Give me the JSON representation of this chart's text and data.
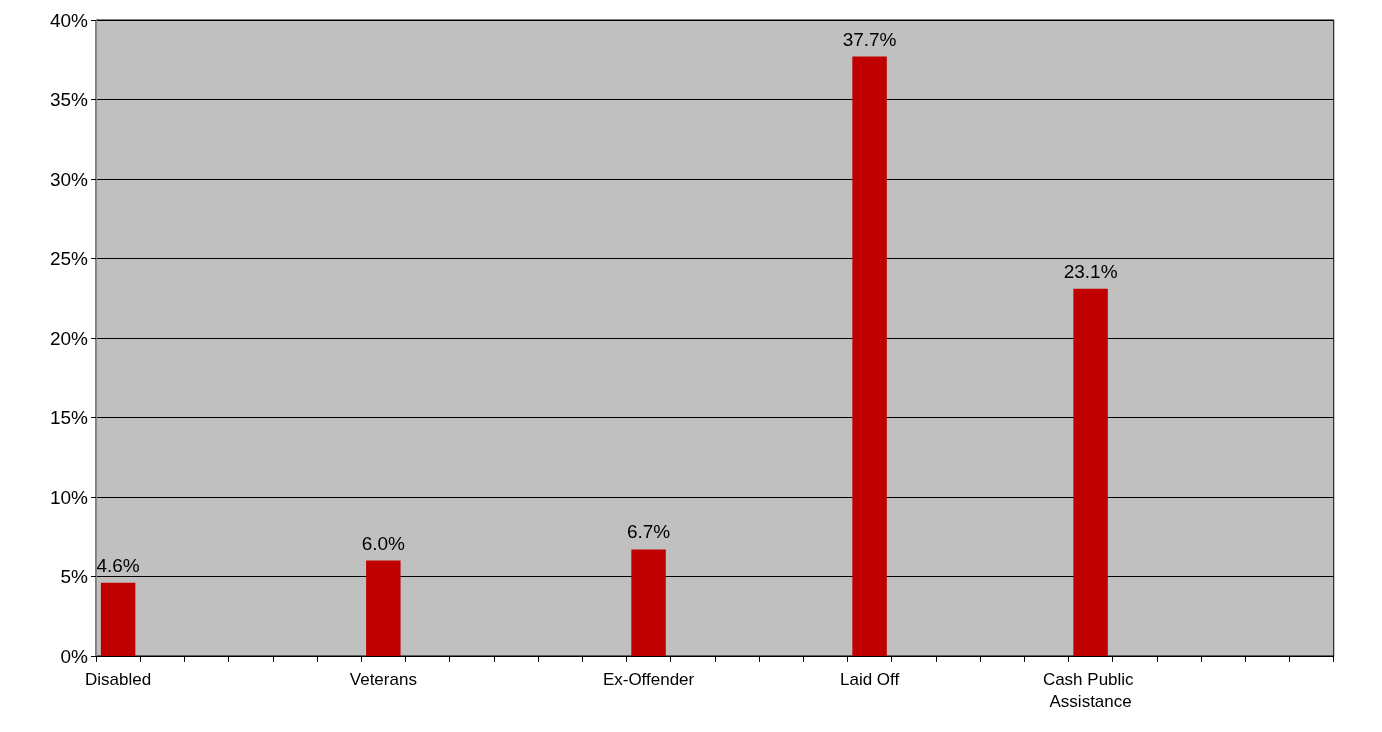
{
  "chart_data": {
    "type": "bar",
    "categories": [
      "Disabled",
      null,
      null,
      null,
      null,
      null,
      "Veterans",
      null,
      null,
      null,
      null,
      null,
      "Ex-Offender",
      null,
      null,
      null,
      null,
      "Laid Off",
      null,
      null,
      null,
      null,
      "Cash Public Assistance",
      null,
      null,
      null,
      null,
      null
    ],
    "values": [
      4.6,
      null,
      null,
      null,
      null,
      null,
      6.0,
      null,
      null,
      null,
      null,
      null,
      6.7,
      null,
      null,
      null,
      null,
      37.7,
      null,
      null,
      null,
      null,
      23.1,
      null,
      null,
      null,
      null,
      null
    ],
    "value_labels": [
      "4.6%",
      null,
      null,
      null,
      null,
      null,
      "6.0%",
      null,
      null,
      null,
      null,
      null,
      "6.7%",
      null,
      null,
      null,
      null,
      "37.7%",
      null,
      null,
      null,
      null,
      "23.1%",
      null,
      null,
      null,
      null,
      null
    ],
    "color": "#c00000",
    "ylim": [
      0,
      40
    ],
    "yticks": [
      {
        "value": 0,
        "label": "0%"
      },
      {
        "value": 5,
        "label": "5%"
      },
      {
        "value": 10,
        "label": "10%"
      },
      {
        "value": 15,
        "label": "15%"
      },
      {
        "value": 20,
        "label": "20%"
      },
      {
        "value": 25,
        "label": "25%"
      },
      {
        "value": 30,
        "label": "30%"
      },
      {
        "value": 35,
        "label": "35%"
      },
      {
        "value": 40,
        "label": "40%"
      }
    ],
    "grid": "y"
  }
}
